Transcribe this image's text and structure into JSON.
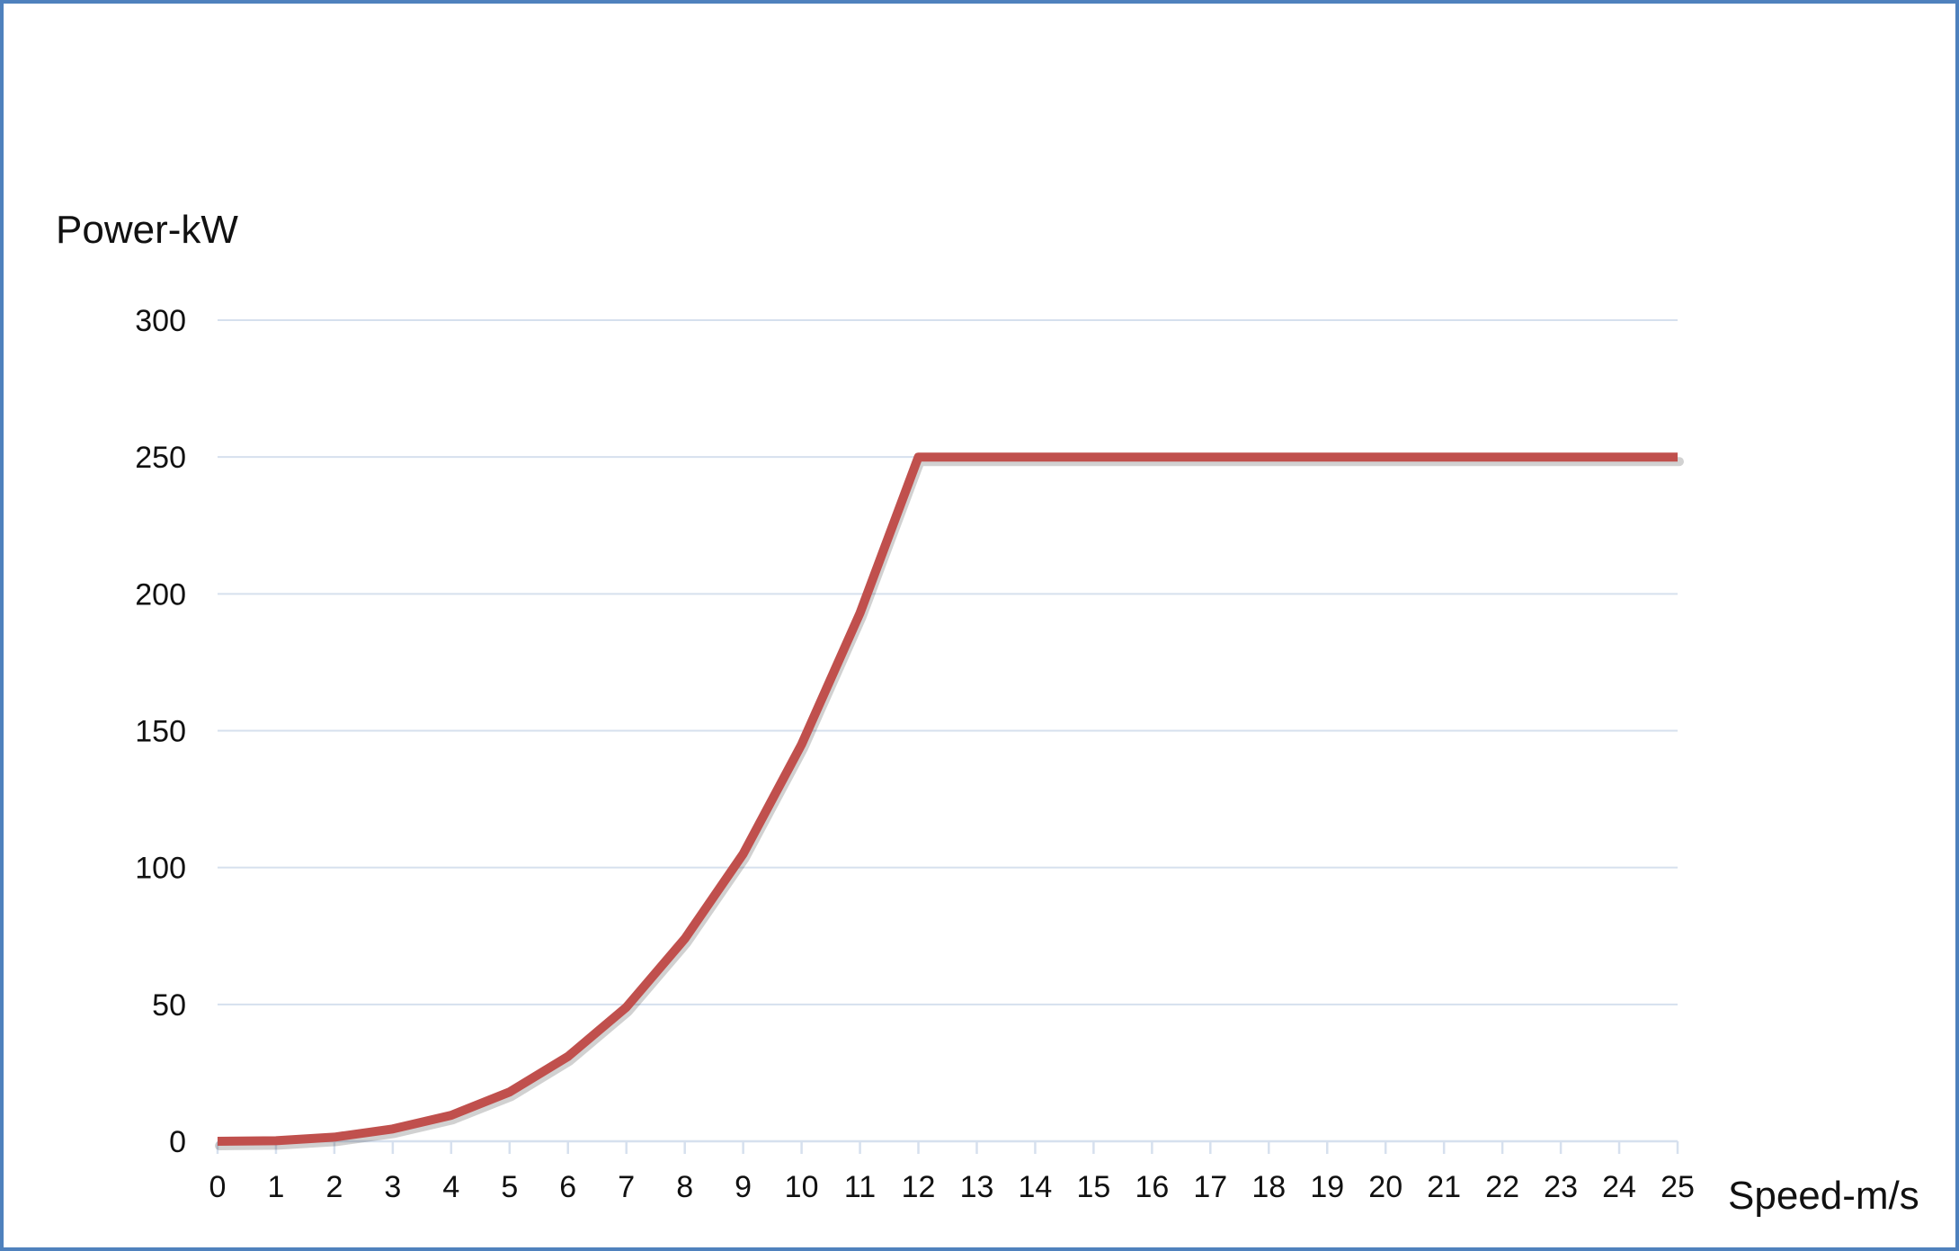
{
  "chart_data": {
    "type": "line",
    "title": "",
    "xlabel": "Speed-m/s",
    "ylabel": "Power-kW",
    "xlim": [
      0,
      25
    ],
    "ylim": [
      0,
      300
    ],
    "x_ticks": [
      0,
      1,
      2,
      3,
      4,
      5,
      6,
      7,
      8,
      9,
      10,
      11,
      12,
      13,
      14,
      15,
      16,
      17,
      18,
      19,
      20,
      21,
      22,
      23,
      24,
      25
    ],
    "y_ticks": [
      0,
      50,
      100,
      150,
      200,
      250,
      300
    ],
    "grid": "horizontal",
    "legend": "none",
    "series": [
      {
        "color": "#c0504d",
        "x": [
          0,
          1,
          2,
          3,
          4,
          5,
          6,
          7,
          8,
          9,
          10,
          11,
          12,
          13,
          14,
          15,
          16,
          17,
          18,
          19,
          20,
          21,
          22,
          23,
          24,
          25
        ],
        "y": [
          0,
          0.2,
          1.5,
          4.5,
          9.5,
          18,
          31,
          49,
          74,
          105,
          145,
          193,
          250,
          250,
          250,
          250,
          250,
          250,
          250,
          250,
          250,
          250,
          250,
          250,
          250,
          250
        ]
      }
    ]
  },
  "colors": {
    "frame": "#4f81bd",
    "grid": "#d6e0ee",
    "line": "#c0504d"
  }
}
